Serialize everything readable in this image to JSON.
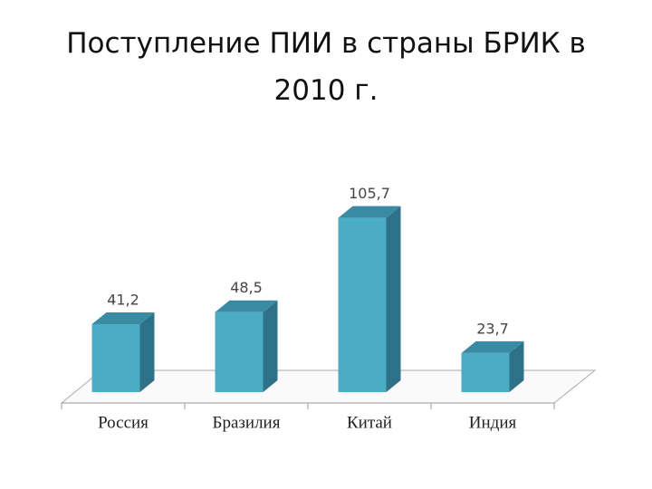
{
  "chart_data": {
    "type": "bar3d",
    "title": "Поступление ПИИ в страны БРИК в 2010 г.",
    "categories": [
      "Россия",
      "Бразилия",
      "Китай",
      "Индия"
    ],
    "values": [
      41.2,
      48.5,
      105.7,
      23.7
    ],
    "value_labels": [
      "41,2",
      "48,5",
      "105,7",
      "23,7"
    ],
    "color": "#4bacc6"
  }
}
